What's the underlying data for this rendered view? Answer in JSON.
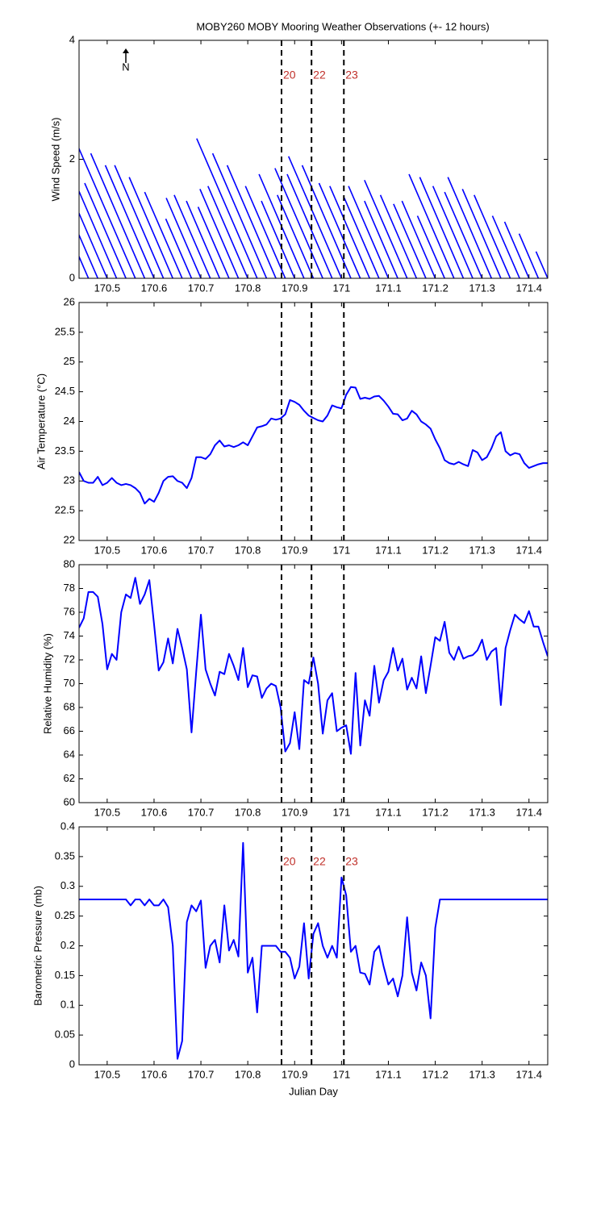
{
  "chart_data": [
    {
      "type": "stick",
      "title": "MOBY260 MOBY Mooring Weather Observations (+- 12 hours)",
      "ylabel": "Wind Speed (m/s)",
      "annotation": "N",
      "color": "#0000ff",
      "xlim": [
        170.44,
        171.44
      ],
      "xticks": [
        170.5,
        170.6,
        170.7,
        170.8,
        170.9,
        171,
        171.1,
        171.2,
        171.3,
        171.4
      ],
      "ylim": [
        0,
        4
      ],
      "yticks": [
        0,
        2,
        4
      ],
      "vlines": [
        170.872,
        170.936,
        171.005
      ],
      "vline_labels": [
        "20",
        "22",
        "23"
      ],
      "x": [
        170.44,
        170.46,
        170.48,
        170.5,
        170.52,
        170.54,
        170.56,
        170.58,
        170.6,
        170.62,
        170.64,
        170.66,
        170.68,
        170.7,
        170.72,
        170.74,
        170.76,
        170.78,
        170.8,
        170.82,
        170.84,
        170.86,
        170.88,
        170.9,
        170.92,
        170.94,
        170.96,
        170.98,
        171,
        171.02,
        171.04,
        171.06,
        171.08,
        171.1,
        171.12,
        171.14,
        171.16,
        171.18,
        171.2,
        171.22,
        171.24,
        171.26,
        171.28,
        171.3,
        171.32,
        171.34,
        171.36,
        171.38,
        171.4,
        171.42,
        171.44
      ],
      "values": [
        1.6,
        2.2,
        2.2,
        2.0,
        1.9,
        1.6,
        2.25,
        2.1,
        1.9,
        1.9,
        1.7,
        1.45,
        1.0,
        1.35,
        1.4,
        1.3,
        1.2,
        1.5,
        1.55,
        2.35,
        2.1,
        1.9,
        1.55,
        1.3,
        1.75,
        1.4,
        1.85,
        1.75,
        2.05,
        1.9,
        1.6,
        1.55,
        1.35,
        1.55,
        1.3,
        1.65,
        1.4,
        1.25,
        1.3,
        1.05,
        1.75,
        1.7,
        1.55,
        1.45,
        1.7,
        1.5,
        1.4,
        1.05,
        0.95,
        0.75,
        0.45
      ],
      "x_end": [
        170.352,
        170.339,
        170.359,
        170.39,
        170.416,
        170.452,
        170.436,
        170.465,
        170.496,
        170.516,
        170.547,
        170.58,
        170.625,
        170.626,
        170.643,
        170.669,
        170.694,
        170.698,
        170.715,
        170.691,
        170.725,
        170.756,
        170.795,
        170.829,
        170.824,
        170.863,
        170.858,
        170.884,
        170.887,
        170.916,
        170.952,
        170.975,
        171.006,
        171.015,
        171.049,
        171.049,
        171.083,
        171.111,
        171.129,
        171.162,
        171.144,
        171.167,
        171.195,
        171.22,
        171.227,
        171.258,
        171.283,
        171.322,
        171.348,
        171.379,
        171.415
      ]
    },
    {
      "type": "line",
      "ylabel": "Air Temperature (°C)",
      "color": "#0000ff",
      "xlim": [
        170.44,
        171.44
      ],
      "xticks": [
        170.5,
        170.6,
        170.7,
        170.8,
        170.9,
        171,
        171.1,
        171.2,
        171.3,
        171.4
      ],
      "ylim": [
        22,
        26
      ],
      "yticks": [
        22,
        22.5,
        23,
        23.5,
        24,
        24.5,
        25,
        25.5,
        26
      ],
      "vlines": [
        170.872,
        170.936,
        171.005
      ],
      "x": [
        170.44,
        170.45,
        170.46,
        170.47,
        170.48,
        170.49,
        170.5,
        170.51,
        170.52,
        170.53,
        170.54,
        170.55,
        170.56,
        170.57,
        170.58,
        170.59,
        170.6,
        170.61,
        170.62,
        170.63,
        170.64,
        170.65,
        170.66,
        170.67,
        170.68,
        170.69,
        170.7,
        170.71,
        170.72,
        170.73,
        170.74,
        170.75,
        170.76,
        170.77,
        170.78,
        170.79,
        170.8,
        170.81,
        170.82,
        170.83,
        170.84,
        170.85,
        170.86,
        170.87,
        170.88,
        170.89,
        170.9,
        170.91,
        170.92,
        170.93,
        170.94,
        170.95,
        170.96,
        170.97,
        170.98,
        170.99,
        171,
        171.01,
        171.02,
        171.03,
        171.04,
        171.05,
        171.06,
        171.07,
        171.08,
        171.09,
        171.1,
        171.11,
        171.12,
        171.13,
        171.14,
        171.15,
        171.16,
        171.17,
        171.18,
        171.19,
        171.2,
        171.21,
        171.22,
        171.23,
        171.24,
        171.25,
        171.26,
        171.27,
        171.28,
        171.29,
        171.3,
        171.31,
        171.32,
        171.33,
        171.34,
        171.35,
        171.36,
        171.37,
        171.38,
        171.39,
        171.4,
        171.41,
        171.42,
        171.43,
        171.44
      ],
      "values": [
        23.15,
        23.0,
        22.97,
        22.97,
        23.07,
        22.93,
        22.97,
        23.05,
        22.97,
        22.93,
        22.95,
        22.93,
        22.88,
        22.8,
        22.62,
        22.7,
        22.65,
        22.8,
        23.0,
        23.07,
        23.08,
        23.0,
        22.97,
        22.88,
        23.05,
        23.4,
        23.4,
        23.37,
        23.45,
        23.6,
        23.68,
        23.58,
        23.6,
        23.57,
        23.6,
        23.65,
        23.6,
        23.75,
        23.9,
        23.92,
        23.95,
        24.05,
        24.03,
        24.05,
        24.12,
        24.36,
        24.33,
        24.28,
        24.18,
        24.1,
        24.06,
        24.02,
        24.0,
        24.1,
        24.27,
        24.24,
        24.22,
        24.45,
        24.58,
        24.57,
        24.38,
        24.4,
        24.38,
        24.42,
        24.43,
        24.35,
        24.25,
        24.13,
        24.12,
        24.02,
        24.05,
        24.18,
        24.12,
        24.0,
        23.95,
        23.88,
        23.7,
        23.55,
        23.35,
        23.3,
        23.28,
        23.32,
        23.28,
        23.25,
        23.52,
        23.48,
        23.35,
        23.4,
        23.55,
        23.75,
        23.82,
        23.5,
        23.43,
        23.47,
        23.45,
        23.3,
        23.22,
        23.25,
        23.28,
        23.3,
        23.3
      ]
    },
    {
      "type": "line",
      "ylabel": "Relative Humidity (%)",
      "color": "#0000ff",
      "xlim": [
        170.44,
        171.44
      ],
      "xticks": [
        170.5,
        170.6,
        170.7,
        170.8,
        170.9,
        171,
        171.1,
        171.2,
        171.3,
        171.4
      ],
      "ylim": [
        60,
        80
      ],
      "yticks": [
        60,
        62,
        64,
        66,
        68,
        70,
        72,
        74,
        76,
        78,
        80
      ],
      "vlines": [
        170.872,
        170.936,
        171.005
      ],
      "x": [
        170.44,
        170.45,
        170.46,
        170.47,
        170.48,
        170.49,
        170.5,
        170.51,
        170.52,
        170.53,
        170.54,
        170.55,
        170.56,
        170.57,
        170.58,
        170.59,
        170.6,
        170.61,
        170.62,
        170.63,
        170.64,
        170.65,
        170.66,
        170.67,
        170.68,
        170.69,
        170.7,
        170.71,
        170.72,
        170.73,
        170.74,
        170.75,
        170.76,
        170.77,
        170.78,
        170.79,
        170.8,
        170.81,
        170.82,
        170.83,
        170.84,
        170.85,
        170.86,
        170.87,
        170.88,
        170.89,
        170.9,
        170.91,
        170.92,
        170.93,
        170.94,
        170.95,
        170.96,
        170.97,
        170.98,
        170.99,
        171,
        171.01,
        171.02,
        171.03,
        171.04,
        171.05,
        171.06,
        171.07,
        171.08,
        171.09,
        171.1,
        171.11,
        171.12,
        171.13,
        171.14,
        171.15,
        171.16,
        171.17,
        171.18,
        171.19,
        171.2,
        171.21,
        171.22,
        171.23,
        171.24,
        171.25,
        171.26,
        171.27,
        171.28,
        171.29,
        171.3,
        171.31,
        171.32,
        171.33,
        171.34,
        171.35,
        171.36,
        171.37,
        171.38,
        171.39,
        171.4,
        171.41,
        171.42,
        171.43,
        171.44
      ],
      "values": [
        74.7,
        75.5,
        77.7,
        77.7,
        77.3,
        75,
        71.2,
        72.5,
        72,
        76,
        77.5,
        77.2,
        78.9,
        76.7,
        77.5,
        78.7,
        75,
        71.1,
        71.8,
        73.8,
        71.7,
        74.6,
        73,
        71.2,
        65.9,
        71,
        75.8,
        71.2,
        70,
        69,
        71,
        70.8,
        72.5,
        71.5,
        70.3,
        73,
        69.7,
        70.7,
        70.6,
        68.8,
        69.6,
        70,
        69.8,
        68,
        64.3,
        65,
        67.6,
        64.5,
        70.3,
        70,
        72.2,
        70,
        65.8,
        68.6,
        69.2,
        66,
        66.3,
        66.5,
        64.1,
        70.9,
        64.8,
        68.6,
        67.3,
        71.5,
        68.4,
        70.3,
        71,
        73,
        71.1,
        72.1,
        69.5,
        70.5,
        69.6,
        72.3,
        69.2,
        71.5,
        73.9,
        73.6,
        75.2,
        72.6,
        72,
        73.1,
        72.1,
        72.3,
        72.4,
        72.8,
        73.7,
        72,
        72.7,
        73,
        68.2,
        73,
        74.5,
        75.8,
        75.4,
        75.1,
        76.1,
        74.8,
        74.8,
        73.5,
        72.3
      ]
    },
    {
      "type": "line",
      "ylabel": "Barometric Pressure (mb)",
      "xlabel": "Julian Day",
      "color": "#0000ff",
      "xlim": [
        170.44,
        171.44
      ],
      "xticks": [
        170.5,
        170.6,
        170.7,
        170.8,
        170.9,
        171,
        171.1,
        171.2,
        171.3,
        171.4
      ],
      "ylim": [
        0,
        0.4
      ],
      "yticks": [
        0,
        0.05,
        0.1,
        0.15,
        0.2,
        0.25,
        0.3,
        0.35,
        0.4
      ],
      "vlines": [
        170.872,
        170.936,
        171.005
      ],
      "vline_labels": [
        "20",
        "22",
        "23"
      ],
      "x": [
        170.44,
        170.45,
        170.46,
        170.47,
        170.48,
        170.49,
        170.5,
        170.51,
        170.52,
        170.53,
        170.54,
        170.55,
        170.56,
        170.57,
        170.58,
        170.59,
        170.6,
        170.61,
        170.62,
        170.63,
        170.64,
        170.65,
        170.66,
        170.67,
        170.68,
        170.69,
        170.7,
        170.71,
        170.72,
        170.73,
        170.74,
        170.75,
        170.76,
        170.77,
        170.78,
        170.79,
        170.8,
        170.81,
        170.82,
        170.83,
        170.84,
        170.85,
        170.86,
        170.87,
        170.88,
        170.89,
        170.9,
        170.91,
        170.92,
        170.93,
        170.94,
        170.95,
        170.96,
        170.97,
        170.98,
        170.99,
        171,
        171.01,
        171.02,
        171.03,
        171.04,
        171.05,
        171.06,
        171.07,
        171.08,
        171.09,
        171.1,
        171.11,
        171.12,
        171.13,
        171.14,
        171.15,
        171.16,
        171.17,
        171.18,
        171.19,
        171.2,
        171.21,
        171.22,
        171.23,
        171.24,
        171.25,
        171.26,
        171.27,
        171.28,
        171.29,
        171.3,
        171.31,
        171.32,
        171.33,
        171.34,
        171.35,
        171.36,
        171.37,
        171.38,
        171.39,
        171.4,
        171.41,
        171.42,
        171.43,
        171.44
      ],
      "values": [
        0.278,
        0.278,
        0.278,
        0.278,
        0.278,
        0.278,
        0.278,
        0.278,
        0.278,
        0.278,
        0.278,
        0.268,
        0.278,
        0.278,
        0.268,
        0.278,
        0.268,
        0.268,
        0.278,
        0.265,
        0.2,
        0.01,
        0.04,
        0.24,
        0.268,
        0.258,
        0.276,
        0.163,
        0.2,
        0.21,
        0.172,
        0.268,
        0.192,
        0.21,
        0.182,
        0.373,
        0.155,
        0.18,
        0.088,
        0.2,
        0.2,
        0.2,
        0.2,
        0.19,
        0.19,
        0.18,
        0.145,
        0.165,
        0.238,
        0.145,
        0.22,
        0.238,
        0.2,
        0.18,
        0.2,
        0.18,
        0.315,
        0.285,
        0.19,
        0.2,
        0.155,
        0.153,
        0.135,
        0.19,
        0.2,
        0.165,
        0.135,
        0.145,
        0.115,
        0.15,
        0.248,
        0.155,
        0.125,
        0.172,
        0.15,
        0.078,
        0.23,
        0.278,
        0.278,
        0.278,
        0.278,
        0.278,
        0.278,
        0.278,
        0.278,
        0.278,
        0.278,
        0.278,
        0.278,
        0.278,
        0.278,
        0.278,
        0.278,
        0.278,
        0.278,
        0.278,
        0.278,
        0.278,
        0.278,
        0.278,
        0.278
      ]
    }
  ]
}
